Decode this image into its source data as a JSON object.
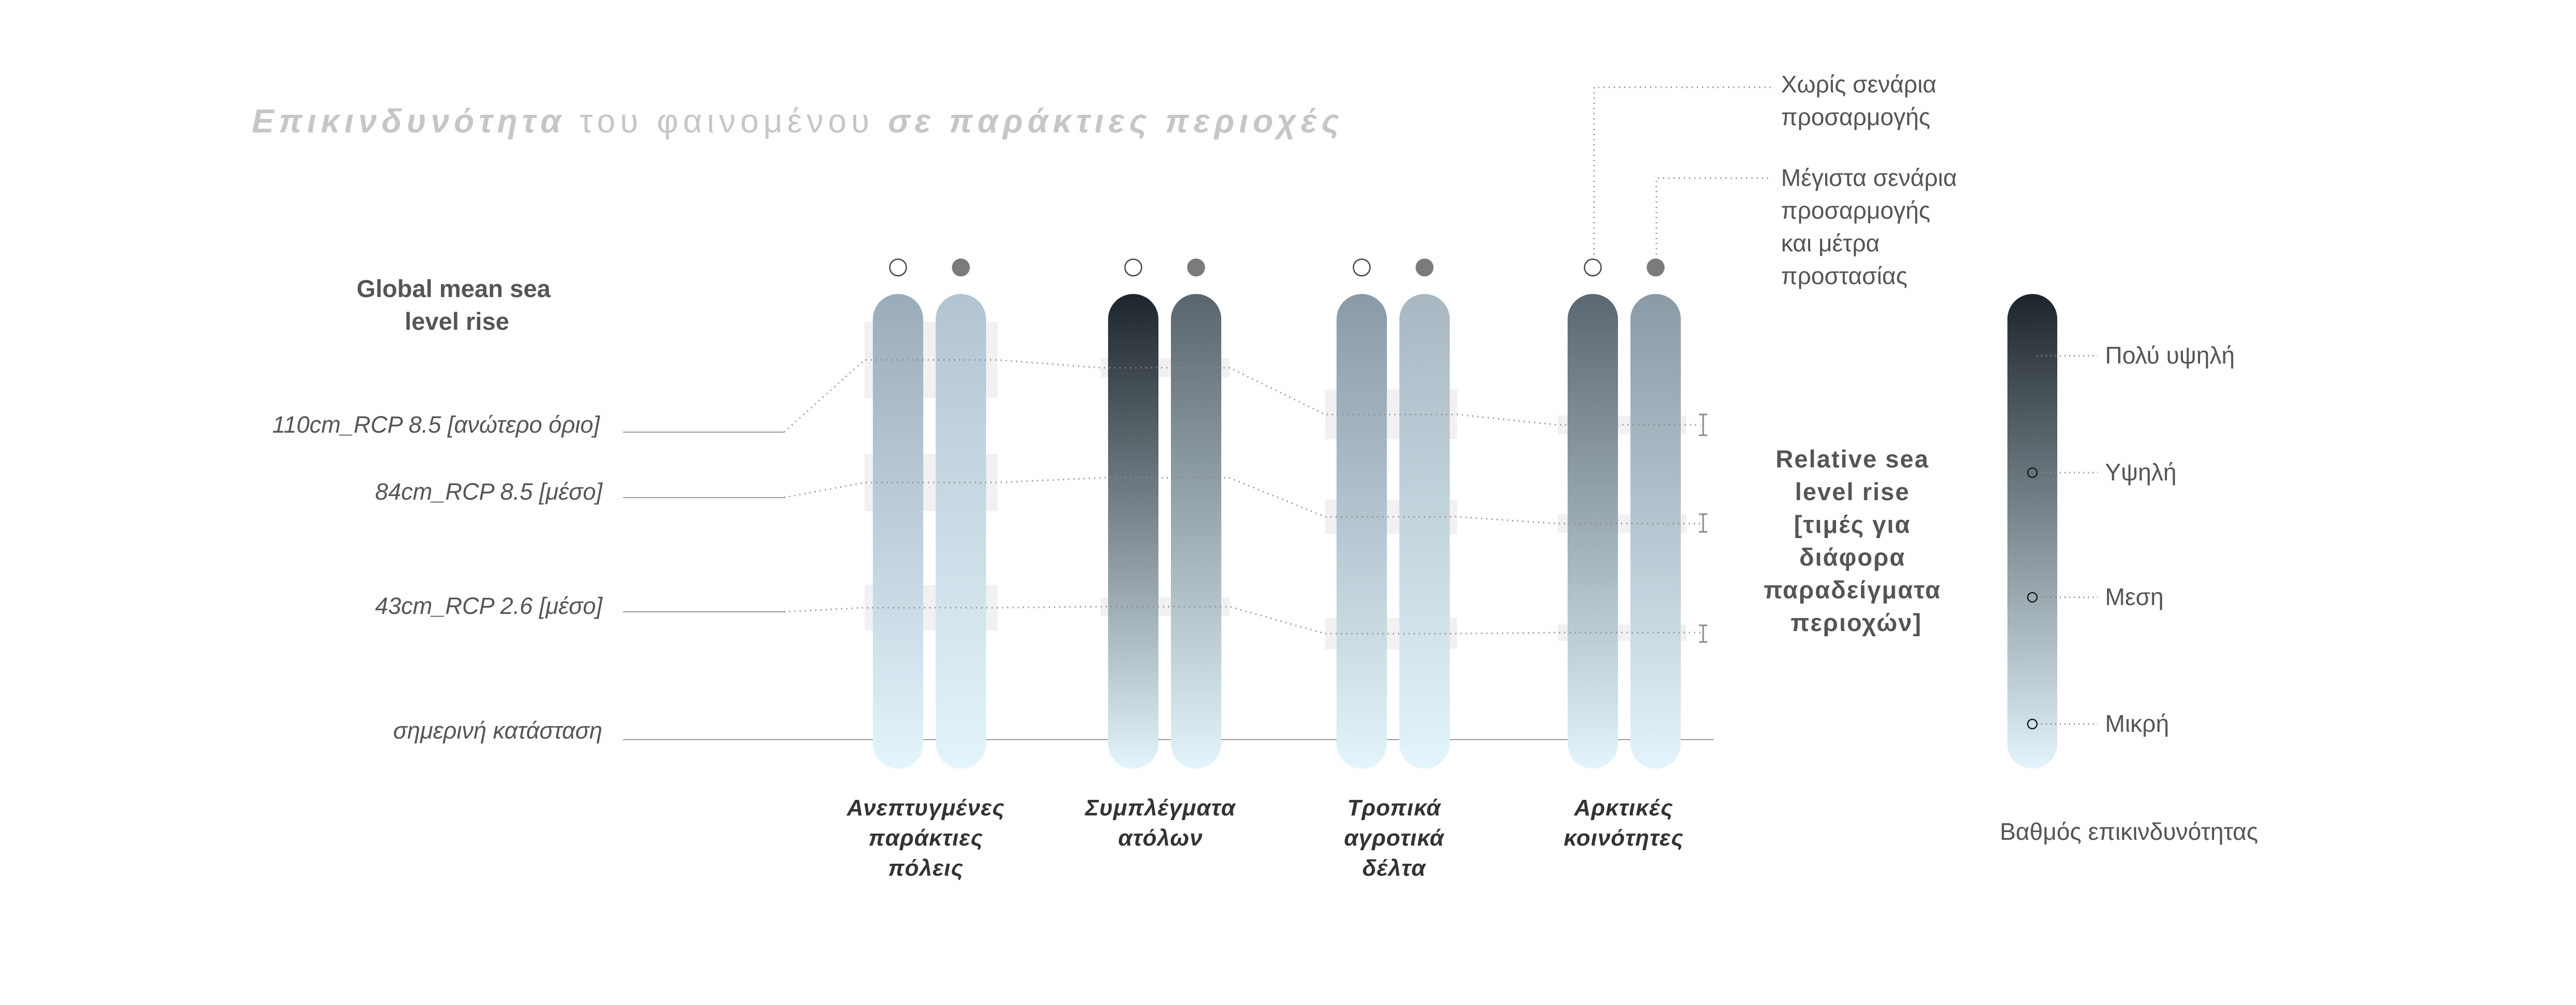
{
  "title": {
    "part1": "Επικινδυνότητα",
    "part2": " του φαινομένου ",
    "part3": "σε παράκτιες περιοχές"
  },
  "global_heading": [
    "Global mean sea",
    "level rise"
  ],
  "levels": [
    {
      "label": "110cm_RCP 8.5 [ανώτερο όριο]"
    },
    {
      "label": "84cm_RCP 8.5 [μέσο]"
    },
    {
      "label": "43cm_RCP 2.6 [μέσο]"
    },
    {
      "label": "σημερινή κατάσταση"
    }
  ],
  "categories": [
    {
      "label": [
        "Ανεπτυγμένες",
        "παράκτιες",
        "πόλεις"
      ],
      "bar_top_colors": [
        "#9aacba",
        "#b2c4d0"
      ]
    },
    {
      "label": [
        "Συμπλέγματα",
        "ατόλων"
      ],
      "bar_top_colors": [
        "#1d252c",
        "#59656e"
      ]
    },
    {
      "label": [
        "Τροπικά",
        "αγροτικά",
        "δέλτα"
      ],
      "bar_top_colors": [
        "#8a9aa6",
        "#a8b7c2"
      ]
    },
    {
      "label": [
        "Αρκτικές",
        "κοινότητες"
      ],
      "bar_top_colors": [
        "#5a6670",
        "#8a9aa6"
      ]
    }
  ],
  "scenario_markers": {
    "open": "Χωρίς σενάρια προσαρμογής",
    "filled": "Μέγιστα σενάρια προσαρμογής και μέτρα προστασίας"
  },
  "annotations": {
    "no_adaptation": [
      "Χωρίς σενάρια",
      "προσαρμογής"
    ],
    "max_adaptation": [
      "Μέγιστα σενάρια",
      "προσαρμογής",
      "και μέτρα",
      "προστασίας"
    ]
  },
  "relative_heading": [
    "Relative sea",
    "level rise",
    "[τιμές για",
    "διάφορα",
    "παραδείγματα",
    "περιοχών]"
  ],
  "legend": {
    "levels": [
      "Πολύ υψηλή",
      "Υψηλή",
      "Μεση",
      "Μικρή"
    ],
    "title": "Βαθμός επικινδυνότητας",
    "top_color": "#1d252c",
    "bottom_color": "#e3f4fc"
  },
  "colors": {
    "bar_bottom": "#e3f4fc",
    "title": "#c6c6c6",
    "text": "#555555",
    "marker_filled": "#7b7b7b",
    "dotted_line": "#9a9a9a"
  }
}
